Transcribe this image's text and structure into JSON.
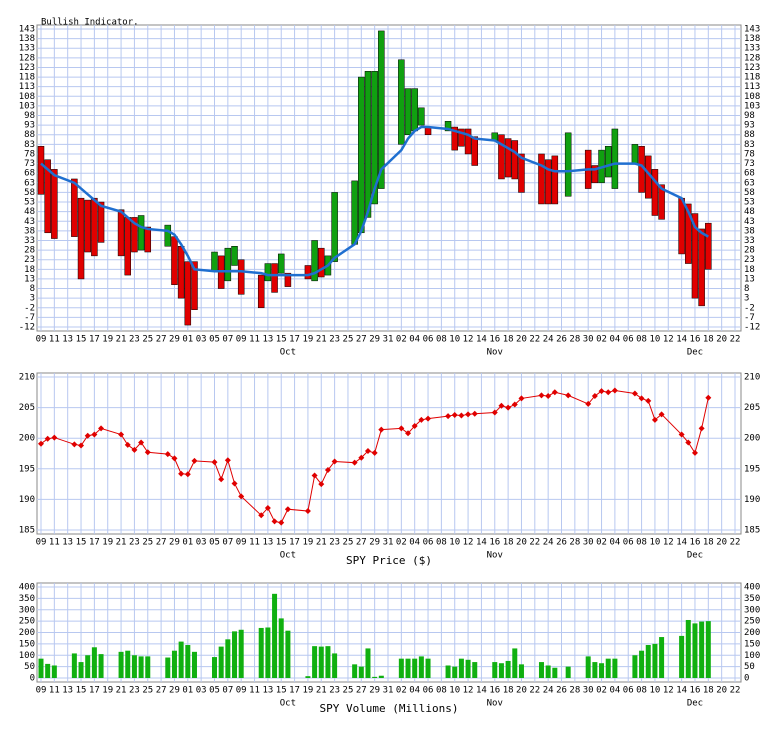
{
  "x_axis": {
    "x": [
      "09-09",
      "09-10",
      "09-11",
      "09-14",
      "09-15",
      "09-16",
      "09-17",
      "09-18",
      "09-21",
      "09-22",
      "09-23",
      "09-24",
      "09-25",
      "09-28",
      "09-29",
      "09-30",
      "10-01",
      "10-02",
      "10-05",
      "10-06",
      "10-07",
      "10-08",
      "10-09",
      "10-12",
      "10-13",
      "10-14",
      "10-15",
      "10-16",
      "10-19",
      "10-20",
      "10-21",
      "10-22",
      "10-23",
      "10-26",
      "10-27",
      "10-28",
      "10-29",
      "10-30",
      "11-02",
      "11-03",
      "11-04",
      "11-05",
      "11-06",
      "11-09",
      "11-10",
      "11-11",
      "11-12",
      "11-13",
      "11-16",
      "11-17",
      "11-18",
      "11-19",
      "11-20",
      "11-23",
      "11-24",
      "11-25",
      "11-27",
      "11-30",
      "12-01",
      "12-02",
      "12-03",
      "12-04",
      "12-07",
      "12-08",
      "12-09",
      "12-10",
      "12-11",
      "12-14",
      "12-15",
      "12-16",
      "12-17",
      "12-18"
    ],
    "xlim": [
      "09-09",
      "12-22"
    ],
    "xticks": [
      {
        "value": "09-09",
        "label": "09"
      },
      {
        "value": "09-11",
        "label": "11"
      },
      {
        "value": "09-13",
        "label": "13"
      },
      {
        "value": "09-15",
        "label": "15"
      },
      {
        "value": "09-17",
        "label": "17"
      },
      {
        "value": "09-19",
        "label": "19"
      },
      {
        "value": "09-21",
        "label": "21"
      },
      {
        "value": "09-23",
        "label": "23"
      },
      {
        "value": "09-25",
        "label": "25"
      },
      {
        "value": "09-27",
        "label": "27"
      },
      {
        "value": "09-29",
        "label": "29"
      },
      {
        "value": "10-01",
        "label": "01"
      },
      {
        "value": "10-03",
        "label": "03"
      },
      {
        "value": "10-05",
        "label": "05"
      },
      {
        "value": "10-07",
        "label": "07"
      },
      {
        "value": "10-09",
        "label": "09"
      },
      {
        "value": "10-11",
        "label": "11"
      },
      {
        "value": "10-13",
        "label": "13"
      },
      {
        "value": "10-15",
        "label": "15"
      },
      {
        "value": "10-17",
        "label": "17"
      },
      {
        "value": "10-19",
        "label": "19"
      },
      {
        "value": "10-21",
        "label": "21"
      },
      {
        "value": "10-23",
        "label": "23"
      },
      {
        "value": "10-25",
        "label": "25"
      },
      {
        "value": "10-27",
        "label": "27"
      },
      {
        "value": "10-29",
        "label": "29"
      },
      {
        "value": "10-31",
        "label": "31"
      },
      {
        "value": "11-02",
        "label": "02"
      },
      {
        "value": "11-04",
        "label": "04"
      },
      {
        "value": "11-06",
        "label": "06"
      },
      {
        "value": "11-08",
        "label": "08"
      },
      {
        "value": "11-10",
        "label": "10"
      },
      {
        "value": "11-12",
        "label": "12"
      },
      {
        "value": "11-14",
        "label": "14"
      },
      {
        "value": "11-16",
        "label": "16"
      },
      {
        "value": "11-18",
        "label": "18"
      },
      {
        "value": "11-20",
        "label": "20"
      },
      {
        "value": "11-22",
        "label": "22"
      },
      {
        "value": "11-24",
        "label": "24"
      },
      {
        "value": "11-26",
        "label": "26"
      },
      {
        "value": "11-28",
        "label": "28"
      },
      {
        "value": "11-30",
        "label": "30"
      },
      {
        "value": "12-02",
        "label": "02"
      },
      {
        "value": "12-04",
        "label": "04"
      },
      {
        "value": "12-06",
        "label": "06"
      },
      {
        "value": "12-08",
        "label": "08"
      },
      {
        "value": "12-10",
        "label": "10"
      },
      {
        "value": "12-12",
        "label": "12"
      },
      {
        "value": "12-14",
        "label": "14"
      },
      {
        "value": "12-16",
        "label": "16"
      },
      {
        "value": "12-18",
        "label": "18"
      },
      {
        "value": "12-20",
        "label": "20"
      },
      {
        "value": "12-22",
        "label": "22"
      }
    ],
    "months": [
      {
        "value": "10-16",
        "label": "Oct"
      },
      {
        "value": "11-16",
        "label": "Nov"
      },
      {
        "value": "12-16",
        "label": "Dec"
      }
    ]
  },
  "chart_data": [
    {
      "type": "candlestick",
      "title": "Bullish Indicator.",
      "open": [
        82,
        75,
        70,
        65,
        55,
        54,
        55,
        53,
        49,
        45,
        45,
        28,
        40,
        30,
        35,
        30,
        22,
        22,
        17,
        25,
        12,
        20,
        23,
        15,
        12,
        21,
        16,
        16,
        20,
        12,
        29,
        15,
        22,
        31,
        37,
        45,
        52,
        60,
        83,
        88,
        90,
        93,
        92,
        90,
        92,
        91,
        91,
        87,
        85,
        88,
        86,
        85,
        78,
        78,
        75,
        77,
        56,
        80,
        72,
        63,
        66,
        60,
        73,
        82,
        77,
        70,
        62,
        55,
        52,
        47,
        39,
        42
      ],
      "close": [
        57,
        37,
        34,
        35,
        13,
        27,
        25,
        32,
        25,
        15,
        27,
        46,
        27,
        41,
        10,
        3,
        -11,
        -3,
        27,
        8,
        29,
        30,
        5,
        -2,
        21,
        6,
        26,
        9,
        13,
        33,
        14,
        25,
        58,
        64,
        118,
        121,
        121,
        142,
        127,
        112,
        112,
        102,
        88,
        95,
        80,
        82,
        78,
        72,
        89,
        65,
        66,
        65,
        58,
        52,
        52,
        52,
        89,
        60,
        63,
        80,
        82,
        91,
        83,
        58,
        55,
        46,
        44,
        26,
        21,
        3,
        -1,
        18
      ],
      "average": [
        73,
        70,
        67,
        63,
        60,
        57,
        54,
        51,
        48,
        45,
        42,
        40,
        39,
        38,
        36,
        31,
        25,
        18,
        17,
        17,
        17,
        17,
        17,
        16,
        15,
        15,
        15,
        15,
        15,
        16,
        18,
        20,
        24,
        31,
        38,
        48,
        60,
        70,
        80,
        86,
        90,
        92,
        92,
        91,
        90,
        89,
        88,
        86,
        85,
        83,
        81,
        79,
        76,
        72,
        70,
        69,
        69,
        70,
        70,
        71,
        72,
        73,
        73,
        72,
        68,
        64,
        60,
        55,
        48,
        40,
        37,
        35
      ],
      "up_color": "#10a010",
      "down_color": "#e00000",
      "line_color": "#1f6fd0",
      "ylim": [
        -12,
        143
      ],
      "yticks": [
        -12,
        -7,
        -2,
        3,
        8,
        13,
        18,
        23,
        28,
        33,
        38,
        43,
        48,
        53,
        58,
        63,
        68,
        73,
        78,
        83,
        88,
        93,
        98,
        103,
        108,
        113,
        118,
        123,
        128,
        133,
        138,
        143
      ],
      "grid": true
    },
    {
      "type": "line",
      "x_label": "SPY Price ($)",
      "values": [
        199.1,
        199.9,
        200.1,
        199.0,
        198.8,
        200.4,
        200.6,
        201.6,
        200.6,
        198.9,
        198.1,
        199.3,
        197.7,
        197.4,
        196.7,
        194.2,
        194.1,
        196.3,
        196.1,
        193.3,
        196.4,
        192.6,
        190.5,
        187.4,
        188.6,
        186.4,
        186.2,
        188.4,
        188.1,
        193.9,
        192.5,
        194.8,
        196.2,
        196.0,
        196.8,
        197.9,
        197.6,
        201.4,
        201.6,
        200.8,
        202.0,
        203.0,
        203.2,
        203.6,
        203.8,
        203.7,
        203.9,
        204.0,
        204.2,
        205.3,
        205.0,
        205.5,
        206.5,
        207.0,
        206.9,
        207.5,
        207.0,
        205.6,
        206.9,
        207.7,
        207.5,
        207.8,
        207.3,
        206.5,
        206.1,
        203.0,
        203.9,
        200.6,
        199.3,
        197.6,
        201.6,
        206.6
      ],
      "color": "#e00000",
      "ylim": [
        185,
        210
      ],
      "yticks": [
        185,
        190,
        195,
        200,
        205,
        210
      ],
      "grid": true
    },
    {
      "type": "bar",
      "x_label": "SPY Volume (Millions)",
      "values": [
        85,
        62,
        55,
        108,
        70,
        100,
        135,
        105,
        115,
        120,
        100,
        95,
        95,
        90,
        120,
        160,
        145,
        115,
        92,
        138,
        170,
        205,
        212,
        220,
        222,
        370,
        262,
        208,
        8,
        140,
        138,
        140,
        108,
        60,
        50,
        130,
        5,
        10,
        85,
        85,
        85,
        95,
        85,
        55,
        50,
        85,
        80,
        70,
        70,
        65,
        75,
        130,
        60,
        70,
        55,
        45,
        50,
        95,
        70,
        65,
        85,
        85,
        100,
        120,
        145,
        150,
        180,
        185,
        255,
        240,
        248,
        250
      ],
      "color": "#10b010",
      "ylim": [
        0,
        400
      ],
      "yticks": [
        0,
        50,
        100,
        150,
        200,
        250,
        300,
        350,
        400
      ],
      "grid": true
    }
  ]
}
